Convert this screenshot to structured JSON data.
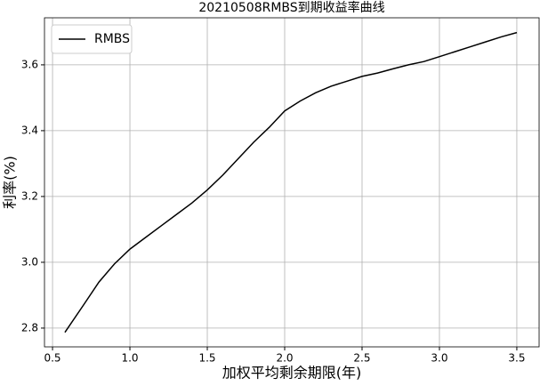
{
  "chart_data": {
    "type": "line",
    "title": "20210508RMBS到期收益率曲线",
    "x_label": "加权平均剩余期限(年)",
    "y_label": "利率(%)",
    "x": [
      0.58,
      0.7,
      0.8,
      0.9,
      1.0,
      1.1,
      1.2,
      1.3,
      1.4,
      1.5,
      1.6,
      1.7,
      1.8,
      1.9,
      2.0,
      2.1,
      2.2,
      2.3,
      2.4,
      2.5,
      2.6,
      2.7,
      2.8,
      2.9,
      3.0,
      3.1,
      3.2,
      3.3,
      3.4,
      3.5
    ],
    "series": [
      {
        "name": "RMBS",
        "color": "#000000",
        "values": [
          2.787,
          2.87,
          2.94,
          2.995,
          3.04,
          3.075,
          3.11,
          3.145,
          3.18,
          3.22,
          3.265,
          3.315,
          3.365,
          3.41,
          3.46,
          3.49,
          3.515,
          3.535,
          3.55,
          3.565,
          3.575,
          3.588,
          3.6,
          3.61,
          3.625,
          3.64,
          3.655,
          3.67,
          3.685,
          3.698
        ]
      }
    ],
    "xlim": [
      0.448,
      3.644
    ],
    "ylim": [
      2.743,
      3.743
    ],
    "xticks": [
      0.5,
      {
        "value": 1,
        "label": "1.0"
      },
      1.5,
      {
        "value": 2,
        "label": "2.0"
      },
      2.5,
      {
        "value": 3,
        "label": "3.0"
      },
      3.5
    ],
    "yticks": [
      2.8,
      {
        "value": 3,
        "label": "3.0"
      },
      3.2,
      3.4,
      3.6
    ],
    "grid": true,
    "legend": "upper-left"
  }
}
